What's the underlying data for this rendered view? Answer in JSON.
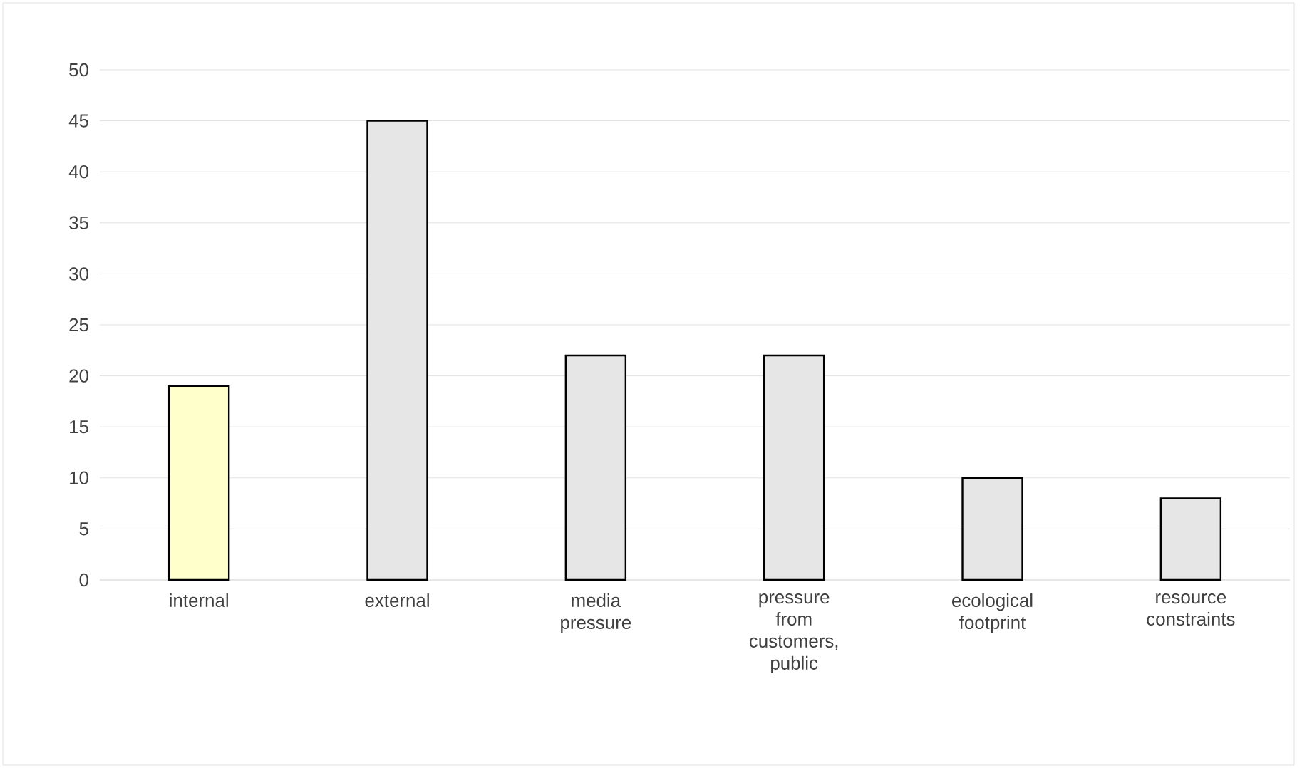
{
  "chart_data": {
    "type": "bar",
    "categories": [
      "internal",
      "external",
      "media pressure",
      "pressure from customers, public",
      "ecological footprint",
      "resource constraints"
    ],
    "values": [
      19,
      45,
      22,
      22,
      10,
      8
    ],
    "colors": [
      "#ffffcc",
      "#e7e6e6",
      "#e7e6e6",
      "#e7e6e6",
      "#e7e6e6",
      "#e7e6e6"
    ],
    "ylim": [
      0,
      50
    ],
    "yticks": [
      0,
      5,
      10,
      15,
      20,
      25,
      30,
      35,
      40,
      45,
      50
    ],
    "grid": "y"
  }
}
